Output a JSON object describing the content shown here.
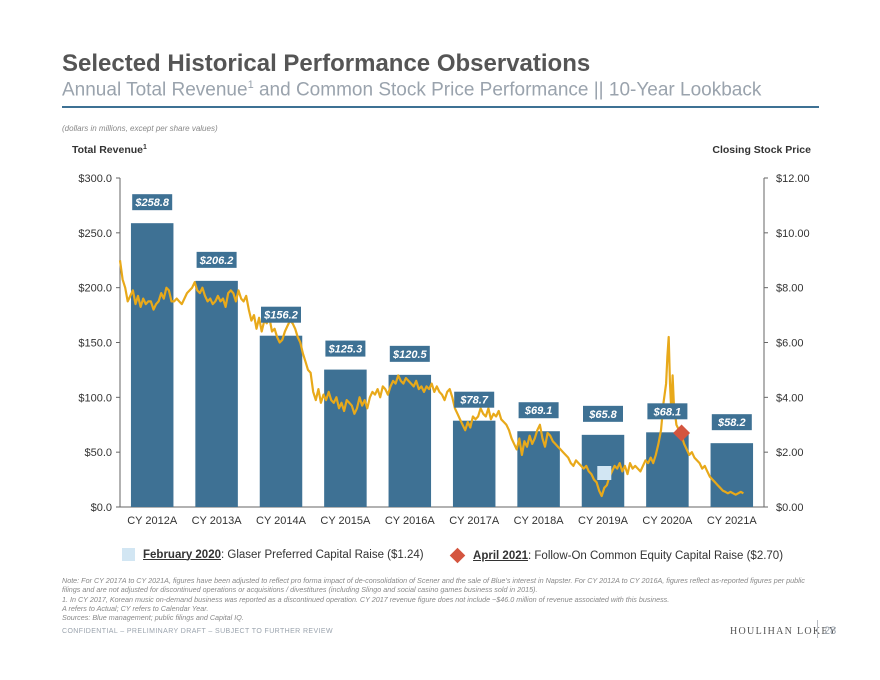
{
  "header": {
    "title": "Selected Historical Performance Observations",
    "subtitle_main": "Annual Total Revenue",
    "subtitle_sup": "1",
    "subtitle_rest": " and Common Stock Price Performance || 10-Year Lookback",
    "units_note": "(dollars in millions, except per share values)"
  },
  "chart_data": {
    "type": "bar",
    "left_axis_title": "Total Revenue",
    "left_axis_title_sup": "1",
    "right_axis_title": "Closing Stock Price",
    "categories": [
      "CY 2012A",
      "CY 2013A",
      "CY 2014A",
      "CY 2015A",
      "CY 2016A",
      "CY 2017A",
      "CY 2018A",
      "CY 2019A",
      "CY 2020A",
      "CY 2021A"
    ],
    "series": [
      {
        "values": [
          258.8,
          206.2,
          156.2,
          125.3,
          120.5,
          78.7,
          69.1,
          65.8,
          68.1,
          58.2
        ],
        "labels": [
          "$258.8",
          "$206.2",
          "$156.2",
          "$125.3",
          "$120.5",
          "$78.7",
          "$69.1",
          "$65.8",
          "$68.1",
          "$58.2"
        ]
      }
    ],
    "ylim_left": [
      0,
      300
    ],
    "left_ticks": [
      "$0.0",
      "$50.0",
      "$100.0",
      "$150.0",
      "$200.0",
      "$250.0",
      "$300.0"
    ],
    "ylim_right": [
      0,
      12
    ],
    "right_ticks": [
      "$0.00",
      "$2.00",
      "$4.00",
      "$6.00",
      "$8.00",
      "$10.00",
      "$12.00"
    ],
    "stock_price_line": {
      "points": [
        [
          0.0,
          9.0
        ],
        [
          0.04,
          8.3
        ],
        [
          0.08,
          8.0
        ],
        [
          0.12,
          7.5
        ],
        [
          0.16,
          7.7
        ],
        [
          0.2,
          7.9
        ],
        [
          0.24,
          7.4
        ],
        [
          0.28,
          7.7
        ],
        [
          0.32,
          7.3
        ],
        [
          0.36,
          7.6
        ],
        [
          0.4,
          7.4
        ],
        [
          0.44,
          7.5
        ],
        [
          0.48,
          7.5
        ],
        [
          0.52,
          7.2
        ],
        [
          0.56,
          7.4
        ],
        [
          0.6,
          7.5
        ],
        [
          0.64,
          7.8
        ],
        [
          0.68,
          7.6
        ],
        [
          0.72,
          8.0
        ],
        [
          0.76,
          7.9
        ],
        [
          0.8,
          7.5
        ],
        [
          0.84,
          7.5
        ],
        [
          0.88,
          7.6
        ],
        [
          0.92,
          7.5
        ],
        [
          0.96,
          7.4
        ],
        [
          1.0,
          7.6
        ],
        [
          1.04,
          7.8
        ],
        [
          1.08,
          7.9
        ],
        [
          1.12,
          8.0
        ],
        [
          1.16,
          8.2
        ],
        [
          1.2,
          7.9
        ],
        [
          1.24,
          7.8
        ],
        [
          1.28,
          8.0
        ],
        [
          1.32,
          7.7
        ],
        [
          1.36,
          7.5
        ],
        [
          1.4,
          7.6
        ],
        [
          1.44,
          7.4
        ],
        [
          1.48,
          7.5
        ],
        [
          1.52,
          7.7
        ],
        [
          1.56,
          7.5
        ],
        [
          1.6,
          7.6
        ],
        [
          1.64,
          7.3
        ],
        [
          1.68,
          7.8
        ],
        [
          1.72,
          7.9
        ],
        [
          1.76,
          7.8
        ],
        [
          1.8,
          7.5
        ],
        [
          1.84,
          7.9
        ],
        [
          1.88,
          7.6
        ],
        [
          1.92,
          7.5
        ],
        [
          1.96,
          7.7
        ],
        [
          2.0,
          7.2
        ],
        [
          2.04,
          6.8
        ],
        [
          2.08,
          7.0
        ],
        [
          2.12,
          6.5
        ],
        [
          2.16,
          6.9
        ],
        [
          2.2,
          6.4
        ],
        [
          2.24,
          6.8
        ],
        [
          2.28,
          6.7
        ],
        [
          2.32,
          6.9
        ],
        [
          2.36,
          6.4
        ],
        [
          2.4,
          6.5
        ],
        [
          2.44,
          6.2
        ],
        [
          2.48,
          6.0
        ],
        [
          2.52,
          6.1
        ],
        [
          2.56,
          6.4
        ],
        [
          2.6,
          6.6
        ],
        [
          2.64,
          6.8
        ],
        [
          2.68,
          6.7
        ],
        [
          2.72,
          6.5
        ],
        [
          2.76,
          6.2
        ],
        [
          2.8,
          6.0
        ],
        [
          2.84,
          5.6
        ],
        [
          2.88,
          5.3
        ],
        [
          2.92,
          5.0
        ],
        [
          2.96,
          4.9
        ],
        [
          3.0,
          4.2
        ],
        [
          3.04,
          3.9
        ],
        [
          3.08,
          4.3
        ],
        [
          3.12,
          3.8
        ],
        [
          3.16,
          4.1
        ],
        [
          3.2,
          3.9
        ],
        [
          3.24,
          4.2
        ],
        [
          3.28,
          3.9
        ],
        [
          3.32,
          3.8
        ],
        [
          3.36,
          4.0
        ],
        [
          3.4,
          3.6
        ],
        [
          3.44,
          3.8
        ],
        [
          3.48,
          3.5
        ],
        [
          3.52,
          3.9
        ],
        [
          3.56,
          3.8
        ],
        [
          3.6,
          3.7
        ],
        [
          3.64,
          3.4
        ],
        [
          3.68,
          3.6
        ],
        [
          3.72,
          4.0
        ],
        [
          3.76,
          3.7
        ],
        [
          3.8,
          3.9
        ],
        [
          3.84,
          3.6
        ],
        [
          3.88,
          4.0
        ],
        [
          3.92,
          4.2
        ],
        [
          3.96,
          4.1
        ],
        [
          4.0,
          4.3
        ],
        [
          4.04,
          4.0
        ],
        [
          4.08,
          4.4
        ],
        [
          4.12,
          4.3
        ],
        [
          4.16,
          4.1
        ],
        [
          4.2,
          4.4
        ],
        [
          4.24,
          4.6
        ],
        [
          4.28,
          4.5
        ],
        [
          4.32,
          4.8
        ],
        [
          4.36,
          4.6
        ],
        [
          4.4,
          4.5
        ],
        [
          4.44,
          4.7
        ],
        [
          4.48,
          4.6
        ],
        [
          4.52,
          4.5
        ],
        [
          4.56,
          4.4
        ],
        [
          4.6,
          4.6
        ],
        [
          4.64,
          4.3
        ],
        [
          4.68,
          4.4
        ],
        [
          4.72,
          4.2
        ],
        [
          4.76,
          4.4
        ],
        [
          4.8,
          4.3
        ],
        [
          4.84,
          4.5
        ],
        [
          4.88,
          4.2
        ],
        [
          4.92,
          4.4
        ],
        [
          4.96,
          4.2
        ],
        [
          5.0,
          4.1
        ],
        [
          5.04,
          3.9
        ],
        [
          5.08,
          4.2
        ],
        [
          5.12,
          4.3
        ],
        [
          5.16,
          4.0
        ],
        [
          5.2,
          3.6
        ],
        [
          5.24,
          3.4
        ],
        [
          5.28,
          3.2
        ],
        [
          5.32,
          3.0
        ],
        [
          5.36,
          2.8
        ],
        [
          5.4,
          3.1
        ],
        [
          5.44,
          2.9
        ],
        [
          5.48,
          3.3
        ],
        [
          5.52,
          3.2
        ],
        [
          5.56,
          3.3
        ],
        [
          5.6,
          3.6
        ],
        [
          5.64,
          3.4
        ],
        [
          5.68,
          3.3
        ],
        [
          5.72,
          3.6
        ],
        [
          5.76,
          3.2
        ],
        [
          5.8,
          3.4
        ],
        [
          5.84,
          3.3
        ],
        [
          5.88,
          3.5
        ],
        [
          5.92,
          3.2
        ],
        [
          5.96,
          3.1
        ],
        [
          6.0,
          3.0
        ],
        [
          6.04,
          2.8
        ],
        [
          6.08,
          2.5
        ],
        [
          6.12,
          2.3
        ],
        [
          6.16,
          2.1
        ],
        [
          6.2,
          2.5
        ],
        [
          6.24,
          1.9
        ],
        [
          6.28,
          2.4
        ],
        [
          6.32,
          2.2
        ],
        [
          6.36,
          2.6
        ],
        [
          6.4,
          2.3
        ],
        [
          6.44,
          2.5
        ],
        [
          6.48,
          2.8
        ],
        [
          6.52,
          3.0
        ],
        [
          6.56,
          2.5
        ],
        [
          6.6,
          2.2
        ],
        [
          6.64,
          2.7
        ],
        [
          6.68,
          2.6
        ],
        [
          6.72,
          2.4
        ],
        [
          6.76,
          2.3
        ],
        [
          6.8,
          2.2
        ],
        [
          6.84,
          2.1
        ],
        [
          6.88,
          2.0
        ],
        [
          6.92,
          1.9
        ],
        [
          6.96,
          1.8
        ],
        [
          7.0,
          1.6
        ],
        [
          7.04,
          1.5
        ],
        [
          7.08,
          1.7
        ],
        [
          7.12,
          1.6
        ],
        [
          7.16,
          1.5
        ],
        [
          7.2,
          1.4
        ],
        [
          7.24,
          1.5
        ],
        [
          7.28,
          1.3
        ],
        [
          7.32,
          1.2
        ],
        [
          7.36,
          1.0
        ],
        [
          7.4,
          0.9
        ],
        [
          7.44,
          0.6
        ],
        [
          7.48,
          0.4
        ],
        [
          7.52,
          0.7
        ],
        [
          7.56,
          0.8
        ],
        [
          7.6,
          1.1
        ],
        [
          7.64,
          1.3
        ],
        [
          7.68,
          1.5
        ],
        [
          7.72,
          1.4
        ],
        [
          7.76,
          1.6
        ],
        [
          7.8,
          1.3
        ],
        [
          7.84,
          1.5
        ],
        [
          7.88,
          1.2
        ],
        [
          7.92,
          1.6
        ],
        [
          7.96,
          1.4
        ],
        [
          8.0,
          1.5
        ],
        [
          8.04,
          1.4
        ],
        [
          8.08,
          1.3
        ],
        [
          8.12,
          1.5
        ],
        [
          8.16,
          1.7
        ],
        [
          8.2,
          1.6
        ],
        [
          8.24,
          1.8
        ],
        [
          8.28,
          1.6
        ],
        [
          8.32,
          1.9
        ],
        [
          8.36,
          2.3
        ],
        [
          8.4,
          2.8
        ],
        [
          8.44,
          3.8
        ],
        [
          8.48,
          4.5
        ],
        [
          8.5,
          5.5
        ],
        [
          8.52,
          6.2
        ],
        [
          8.54,
          4.5
        ],
        [
          8.56,
          3.5
        ],
        [
          8.58,
          4.8
        ],
        [
          8.6,
          3.8
        ],
        [
          8.64,
          3.0
        ],
        [
          8.68,
          2.8
        ],
        [
          8.72,
          2.6
        ],
        [
          8.76,
          2.3
        ],
        [
          8.8,
          2.1
        ],
        [
          8.84,
          1.9
        ],
        [
          8.88,
          2.0
        ],
        [
          8.92,
          1.8
        ],
        [
          8.96,
          1.7
        ],
        [
          9.0,
          1.6
        ],
        [
          9.04,
          1.4
        ],
        [
          9.08,
          1.5
        ],
        [
          9.12,
          1.3
        ],
        [
          9.16,
          1.1
        ],
        [
          9.2,
          1.0
        ],
        [
          9.24,
          0.9
        ],
        [
          9.28,
          0.8
        ],
        [
          9.32,
          0.7
        ],
        [
          9.36,
          0.6
        ],
        [
          9.4,
          0.55
        ],
        [
          9.44,
          0.5
        ],
        [
          9.48,
          0.55
        ],
        [
          9.52,
          0.5
        ],
        [
          9.56,
          0.45
        ],
        [
          9.6,
          0.5
        ],
        [
          9.64,
          0.55
        ],
        [
          9.68,
          0.5
        ]
      ]
    },
    "markers": [
      {
        "x": 7.52,
        "y": 1.24,
        "kind": "square",
        "color": "#d2e6f3"
      },
      {
        "x": 8.72,
        "y": 2.7,
        "kind": "diamond",
        "color": "#d4553f"
      }
    ],
    "colors": {
      "bar": "#3e7194",
      "line": "#e8a91a",
      "label_bg": "#3e7194",
      "label_text": "#ffffff"
    }
  },
  "legend": {
    "item1_bold": "February 2020",
    "item1_text": ": Glaser Preferred Capital Raise ($1.24)",
    "item2_bold": "April 2021",
    "item2_text": ": Follow-On Common Equity Capital Raise ($2.70)"
  },
  "notes": {
    "line1": "Note: For CY 2017A to CY 2021A, figures have been adjusted to reflect pro forma impact of de-consolidation of Scener and the sale of Blue’s interest in Napster. For CY 2012A to CY 2016A, figures reflect as-reported figures per public filings and are not adjusted for discontinued operations or acquisitions / divestitures (including Slingo and social casino games business sold in 2015).",
    "line2": "1. In CY 2017, Korean music on-demand business was reported as a discontinued operation. CY 2017 revenue figure does not include ~$46.0 million of revenue associated with this business.",
    "line3": "A refers to Actual; CY refers to Calendar Year.",
    "line4": "Sources: Blue management; public filings and Capital IQ."
  },
  "footer": {
    "confidential": "CONFIDENTIAL – PRELIMINARY DRAFT – SUBJECT TO FURTHER REVIEW",
    "brand": "HOULIHAN LOKEY",
    "page_number": "28"
  }
}
